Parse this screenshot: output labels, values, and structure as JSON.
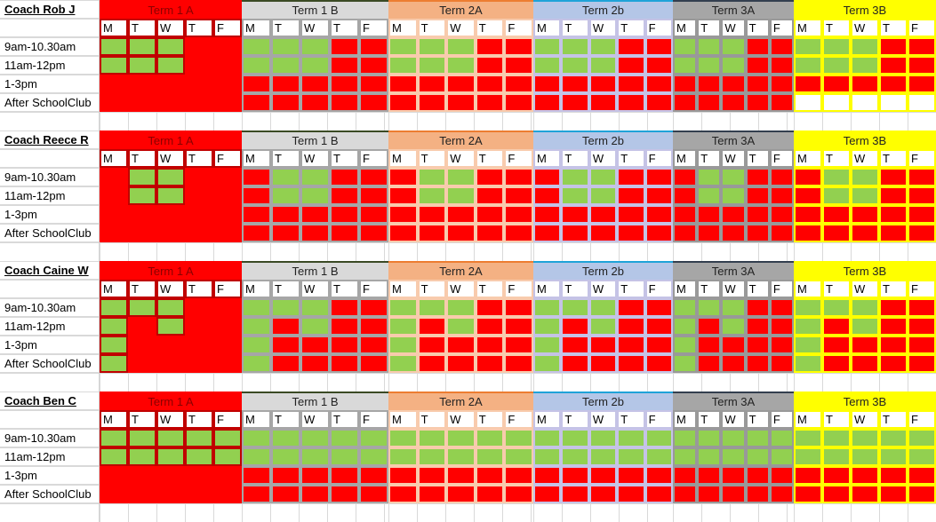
{
  "days": [
    "M",
    "T",
    "W",
    "T",
    "F"
  ],
  "time_slots": [
    "9am-10.30am",
    "11am-12pm",
    "1-3pm",
    "After SchoolClub"
  ],
  "cell_colors": {
    "G": "#92d050",
    "R": "#ff0000",
    "W": "#ffffff"
  },
  "terms": [
    {
      "label": "Term 1 A",
      "bg": "#ff0000",
      "text": "#8b0000",
      "top": "#ff0000",
      "sep": "#c00000"
    },
    {
      "label": "Term 1 B",
      "bg": "#d9d9d9",
      "text": "#222222",
      "top": "#3a4a24",
      "sep": "#a6a6a6"
    },
    {
      "label": "Term 2A",
      "bg": "#f4b183",
      "text": "#222222",
      "top": "#ed7d31",
      "sep": "#f8cbad"
    },
    {
      "label": "Term 2b",
      "bg": "#b4c6e7",
      "text": "#222222",
      "top": "#1fa3d8",
      "sep": "#c5c3e6"
    },
    {
      "label": "Term 3A",
      "bg": "#a6a6a6",
      "text": "#222222",
      "top": "#333f4f",
      "sep": "#999999"
    },
    {
      "label": "Term 3B",
      "bg": "#ffff00",
      "text": "#222222",
      "top": "#ffff00",
      "sep": "#ffff00"
    }
  ],
  "coaches": [
    {
      "name": "Coach Rob J",
      "schedule": [
        [
          "GGGRR",
          "GGGRR",
          "RRRRR",
          "RRRRR"
        ],
        [
          "GGGRR",
          "GGGRR",
          "RRRRR",
          "RRRRR"
        ],
        [
          "GGGRR",
          "GGGRR",
          "RRRRR",
          "RRRRR"
        ],
        [
          "GGGRR",
          "GGGRR",
          "RRRRR",
          "RRRRR"
        ],
        [
          "GGGRR",
          "GGGRR",
          "RRRRR",
          "RRRRR"
        ],
        [
          "GGGRR",
          "GGGRR",
          "RRRRR",
          "WWWWW"
        ]
      ]
    },
    {
      "name": "Coach Reece R",
      "schedule": [
        [
          "RGGRR",
          "RGGRR",
          "RRRRR",
          "RRRRR"
        ],
        [
          "RGGRR",
          "RGGRR",
          "RRRRR",
          "RRRRR"
        ],
        [
          "RGGRR",
          "RGGRR",
          "RRRRR",
          "RRRRR"
        ],
        [
          "RGGRR",
          "RGGRR",
          "RRRRR",
          "RRRRR"
        ],
        [
          "RGGRR",
          "RGGRR",
          "RRRRR",
          "RRRRR"
        ],
        [
          "RGGRR",
          "RGGRR",
          "RRRRR",
          "RRRRR"
        ]
      ]
    },
    {
      "name": "Coach Caine W",
      "schedule": [
        [
          "GGGRR",
          "GRGRR",
          "GRRRR",
          "GRRRR"
        ],
        [
          "GGGRR",
          "GRGRR",
          "GRRRR",
          "GRRRR"
        ],
        [
          "GGGRR",
          "GRGRR",
          "GRRRR",
          "GRRRR"
        ],
        [
          "GGGRR",
          "GRGRR",
          "GRRRR",
          "GRRRR"
        ],
        [
          "GGGRR",
          "GRGRR",
          "GRRRR",
          "GRRRR"
        ],
        [
          "GGGRR",
          "GRGRR",
          "GRRRR",
          "GRRRR"
        ]
      ]
    },
    {
      "name": "Coach Ben C",
      "schedule": [
        [
          "GGGGG",
          "GGGGG",
          "RRRRR",
          "RRRRR"
        ],
        [
          "GGGGG",
          "GGGGG",
          "RRRRR",
          "RRRRR"
        ],
        [
          "GGGGG",
          "GGGGG",
          "RRRRR",
          "RRRRR"
        ],
        [
          "GGGGG",
          "GGGGG",
          "RRRRR",
          "RRRRR"
        ],
        [
          "GGGGG",
          "GGGGG",
          "RRRRR",
          "RRRRR"
        ],
        [
          "GGGGG",
          "GGGGG",
          "RRRRR",
          "RRRRR"
        ]
      ]
    }
  ]
}
